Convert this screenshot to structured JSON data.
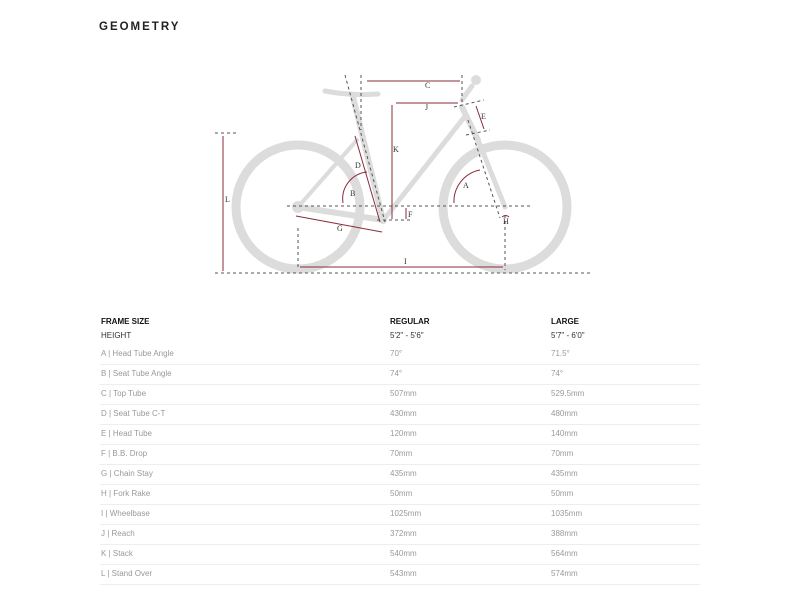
{
  "title": "GEOMETRY",
  "diagram": {
    "labels": [
      "A",
      "B",
      "C",
      "D",
      "E",
      "F",
      "G",
      "H",
      "I",
      "J",
      "K",
      "L"
    ]
  },
  "table": {
    "headers": [
      "FRAME SIZE",
      "REGULAR",
      "LARGE"
    ],
    "height": [
      "HEIGHT",
      "5'2\" - 5'6\"",
      "5'7\" - 6'0\""
    ],
    "rows": [
      [
        "A | Head Tube Angle",
        "70°",
        "71.5°"
      ],
      [
        "B | Seat Tube Angle",
        "74°",
        "74°"
      ],
      [
        "C | Top Tube",
        "507mm",
        "529.5mm"
      ],
      [
        "D | Seat Tube C-T",
        "430mm",
        "480mm"
      ],
      [
        "E | Head Tube",
        "120mm",
        "140mm"
      ],
      [
        "F | B.B. Drop",
        "70mm",
        "70mm"
      ],
      [
        "G | Chain Stay",
        "435mm",
        "435mm"
      ],
      [
        "H | Fork Rake",
        "50mm",
        "50mm"
      ],
      [
        "I | Wheelbase",
        "1025mm",
        "1035mm"
      ],
      [
        "J | Reach",
        "372mm",
        "388mm"
      ],
      [
        "K | Stack",
        "540mm",
        "564mm"
      ],
      [
        "L | Stand Over",
        "543mm",
        "574mm"
      ]
    ]
  },
  "colors": {
    "dimension": "#8b2a3a",
    "frame": "#dcdcdc",
    "guide": "#555555"
  }
}
